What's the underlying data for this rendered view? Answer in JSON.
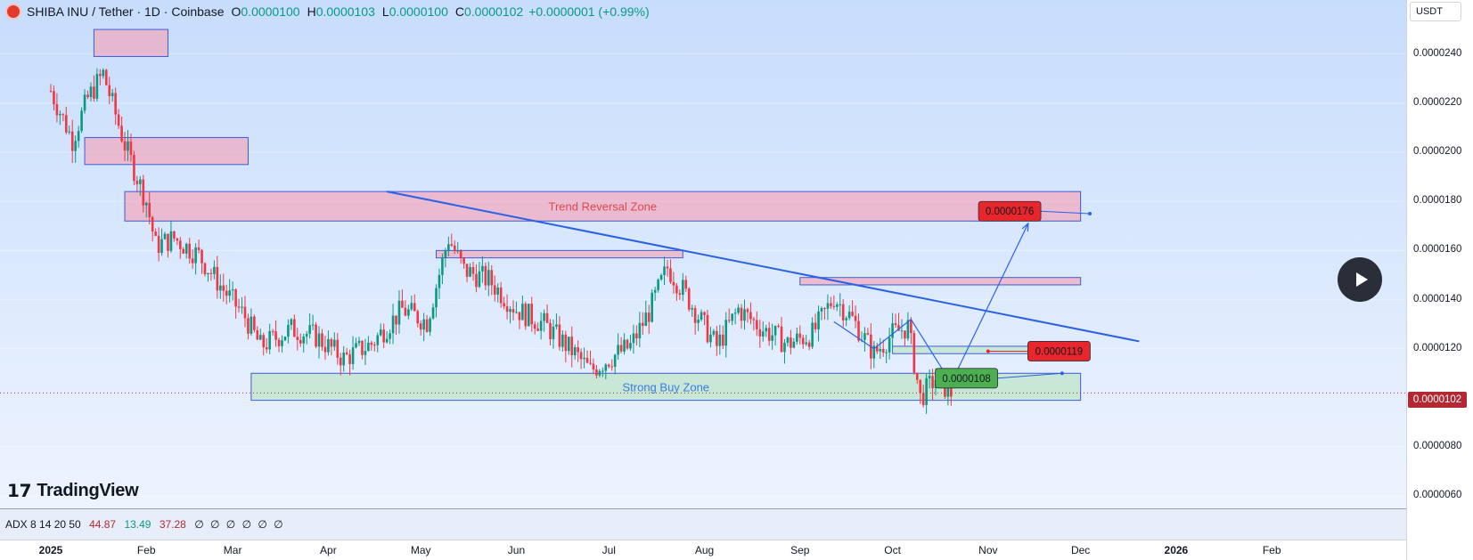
{
  "header": {
    "title": "SHIBA INU / Tether · 1D · Coinbase",
    "open_label": "O",
    "open": "0.0000100",
    "high_label": "H",
    "high": "0.0000103",
    "low_label": "L",
    "low": "0.0000100",
    "close_label": "C",
    "close": "0.0000102",
    "change": "+0.0000001 (+0.99%)"
  },
  "currency": "USDT",
  "current_price": "0.0000102",
  "price_ticks": [
    "0.0000240",
    "0.0000220",
    "0.0000200",
    "0.0000180",
    "0.0000160",
    "0.0000140",
    "0.0000120",
    "0.0000080",
    "0.0000060"
  ],
  "time_labels": [
    {
      "label": "2025",
      "bold": true
    },
    {
      "label": "Feb",
      "bold": false
    },
    {
      "label": "Mar",
      "bold": false
    },
    {
      "label": "Apr",
      "bold": false
    },
    {
      "label": "May",
      "bold": false
    },
    {
      "label": "Jun",
      "bold": false
    },
    {
      "label": "Jul",
      "bold": false
    },
    {
      "label": "Aug",
      "bold": false
    },
    {
      "label": "Sep",
      "bold": false
    },
    {
      "label": "Oct",
      "bold": false
    },
    {
      "label": "Nov",
      "bold": false
    },
    {
      "label": "Dec",
      "bold": false
    },
    {
      "label": "2026",
      "bold": true
    },
    {
      "label": "Feb",
      "bold": false
    }
  ],
  "indicator": {
    "name": "ADX 8 14 20 50",
    "v1": "44.87",
    "v2": "13.49",
    "v3": "37.28",
    "zeros": "∅ ∅ ∅ ∅ ∅ ∅"
  },
  "brand": "TradingView",
  "icons": {
    "play": "play-icon",
    "logo": "tradingview-logo-icon",
    "symbol": "shiba-coin-icon"
  },
  "colors": {
    "up": "#089981",
    "down": "#f23645",
    "zone_red": "#f5a3b8",
    "zone_green": "#b9e4c2",
    "trendline": "#2a62e6",
    "badge_red": "#e8262b",
    "badge_green": "#4caf50"
  },
  "chart_data": {
    "type": "candlestick",
    "symbol": "SHIBA INU / Tether",
    "interval": "1D",
    "exchange": "Coinbase",
    "ylim": [
      5.5e-06,
      2.62e-05
    ],
    "close_path": [
      [
        "2025-01-01",
        2.25e-05
      ],
      [
        "2025-01-08",
        2.05e-05
      ],
      [
        "2025-01-13",
        2.22e-05
      ],
      [
        "2025-01-18",
        2.32e-05
      ],
      [
        "2025-01-25",
        2.03e-05
      ],
      [
        "2025-02-01",
        1.8e-05
      ],
      [
        "2025-02-04",
        1.62e-05
      ],
      [
        "2025-02-10",
        1.65e-05
      ],
      [
        "2025-02-18",
        1.58e-05
      ],
      [
        "2025-02-26",
        1.44e-05
      ],
      [
        "2025-03-05",
        1.33e-05
      ],
      [
        "2025-03-10",
        1.21e-05
      ],
      [
        "2025-03-20",
        1.28e-05
      ],
      [
        "2025-03-28",
        1.25e-05
      ],
      [
        "2025-04-06",
        1.16e-05
      ],
      [
        "2025-04-15",
        1.22e-05
      ],
      [
        "2025-04-25",
        1.36e-05
      ],
      [
        "2025-05-03",
        1.31e-05
      ],
      [
        "2025-05-10",
        1.65e-05
      ],
      [
        "2025-05-15",
        1.52e-05
      ],
      [
        "2025-05-23",
        1.48e-05
      ],
      [
        "2025-06-01",
        1.36e-05
      ],
      [
        "2025-06-10",
        1.3e-05
      ],
      [
        "2025-06-20",
        1.18e-05
      ],
      [
        "2025-06-25",
        1.11e-05
      ],
      [
        "2025-07-01",
        1.16e-05
      ],
      [
        "2025-07-08",
        1.21e-05
      ],
      [
        "2025-07-14",
        1.35e-05
      ],
      [
        "2025-07-20",
        1.53e-05
      ],
      [
        "2025-07-25",
        1.44e-05
      ],
      [
        "2025-08-01",
        1.29e-05
      ],
      [
        "2025-08-05",
        1.21e-05
      ],
      [
        "2025-08-12",
        1.36e-05
      ],
      [
        "2025-08-20",
        1.28e-05
      ],
      [
        "2025-08-28",
        1.22e-05
      ],
      [
        "2025-09-05",
        1.26e-05
      ],
      [
        "2025-09-12",
        1.41e-05
      ],
      [
        "2025-09-18",
        1.32e-05
      ],
      [
        "2025-09-25",
        1.18e-05
      ],
      [
        "2025-10-01",
        1.26e-05
      ],
      [
        "2025-10-06",
        1.29e-05
      ],
      [
        "2025-10-10",
        1e-05
      ],
      [
        "2025-10-15",
        1.08e-05
      ],
      [
        "2025-10-20",
        1.02e-05
      ]
    ],
    "zones": [
      {
        "label": "Trend Reversal Zone",
        "type": "resistance",
        "x0": "2025-01-25",
        "x1": "2025-12-01",
        "y0": 1.72e-05,
        "y1": 1.84e-05
      },
      {
        "label": "Strong Buy Zone",
        "type": "support",
        "x0": "2025-03-07",
        "x1": "2025-12-01",
        "y0": 9.9e-06,
        "y1": 1.1e-05
      },
      {
        "label": "",
        "type": "resistance",
        "x0": "2025-01-15",
        "x1": "2025-02-08",
        "y0": 2.39e-05,
        "y1": 2.5e-05
      },
      {
        "label": "",
        "type": "resistance",
        "x0": "2025-01-12",
        "x1": "2025-03-06",
        "y0": 1.95e-05,
        "y1": 2.06e-05
      },
      {
        "label": "",
        "type": "resistance",
        "x0": "2025-05-06",
        "x1": "2025-07-25",
        "y0": 1.57e-05,
        "y1": 1.6e-05
      },
      {
        "label": "",
        "type": "resistance",
        "x0": "2025-09-01",
        "x1": "2025-12-01",
        "y0": 1.46e-05,
        "y1": 1.49e-05
      },
      {
        "label": "",
        "type": "support",
        "x0": "2025-10-01",
        "x1": "2025-12-01",
        "y0": 1.18e-05,
        "y1": 1.21e-05
      }
    ],
    "trendline": [
      [
        "2025-04-20",
        1.84e-05
      ],
      [
        "2025-12-20",
        1.23e-05
      ]
    ],
    "projection_path": [
      [
        "2025-09-12",
        1.31e-05
      ],
      [
        "2025-09-25",
        1.2e-05
      ],
      [
        "2025-10-07",
        1.32e-05
      ],
      [
        "2025-10-20",
        1.06e-05
      ],
      [
        "2025-11-14",
        1.71e-05
      ]
    ],
    "targets": [
      {
        "label": "0.0000176",
        "price": 1.76e-05,
        "color": "red"
      },
      {
        "label": "0.0000119",
        "price": 1.19e-05,
        "color": "red"
      },
      {
        "label": "0.0000108",
        "price": 1.08e-05,
        "color": "green"
      }
    ]
  }
}
